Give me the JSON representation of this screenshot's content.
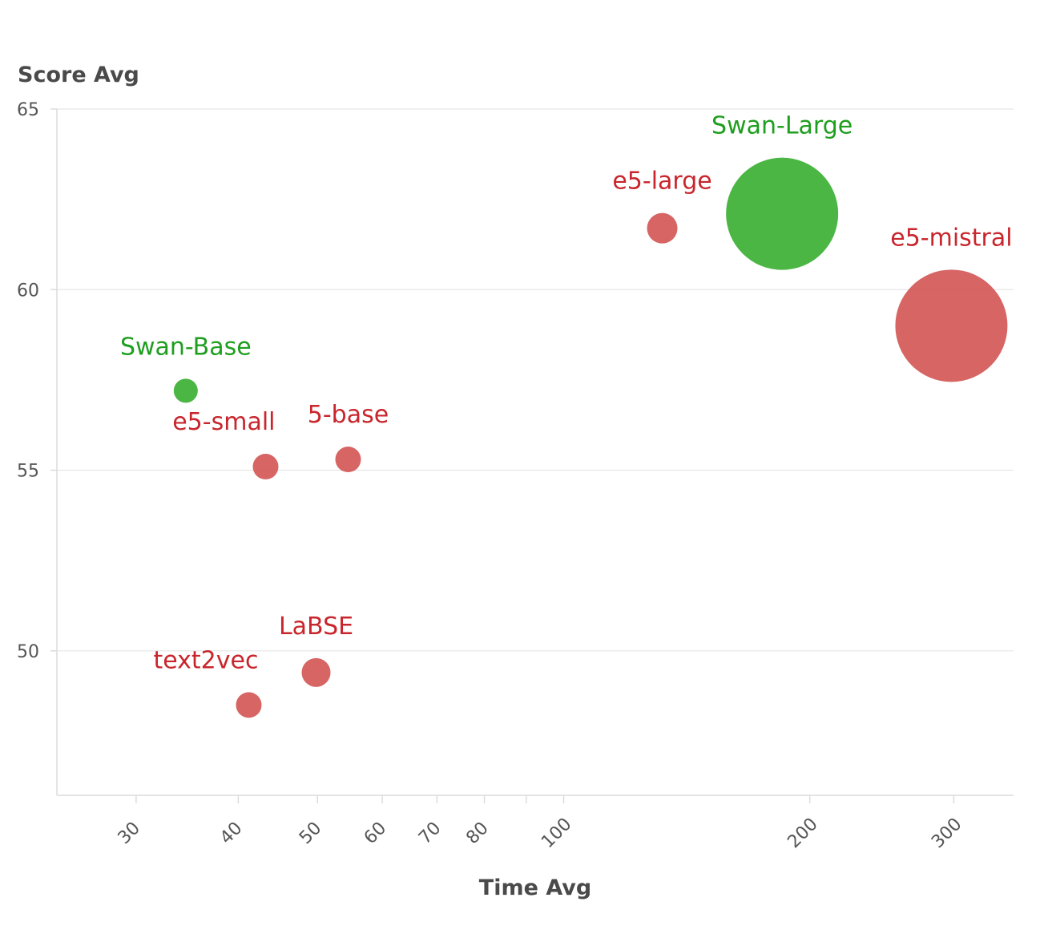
{
  "chart_data": {
    "type": "scatter",
    "title": "",
    "xlabel": "Time Avg",
    "ylabel": "Score Avg",
    "x_scale": "log",
    "xlim": [
      24,
      355
    ],
    "ylim": [
      46,
      65
    ],
    "x_ticks": [
      30,
      40,
      50,
      60,
      70,
      80,
      100,
      200,
      300
    ],
    "x_minor_ticks": [
      90
    ],
    "y_ticks": [
      50,
      55,
      60,
      65
    ],
    "grid": "y",
    "legend": "none",
    "colors": {
      "highlight": "#3cb034",
      "baseline": "#d0504f",
      "highlight_text": "#1e9e1e",
      "baseline_text": "#c8262c"
    },
    "points": [
      {
        "name": "Swan-Large",
        "x": 185,
        "y": 62.1,
        "size": 70,
        "group": "highlight",
        "label_pos": "above"
      },
      {
        "name": "e5-large",
        "x": 132,
        "y": 61.7,
        "size": 19,
        "group": "baseline",
        "label_pos": "above"
      },
      {
        "name": "e5-mistral",
        "x": 298,
        "y": 59.0,
        "size": 70,
        "group": "baseline",
        "label_pos": "above"
      },
      {
        "name": "Swan-Base",
        "x": 34.5,
        "y": 57.2,
        "size": 15,
        "group": "highlight",
        "label_pos": "above"
      },
      {
        "name": "e5-small",
        "x": 43.2,
        "y": 55.1,
        "size": 16,
        "group": "baseline",
        "label_pos": "left-above"
      },
      {
        "name": "5-base",
        "x": 54.5,
        "y": 55.3,
        "size": 16,
        "group": "baseline",
        "label_pos": "above"
      },
      {
        "name": "LaBSE",
        "x": 49.8,
        "y": 49.4,
        "size": 18,
        "group": "baseline",
        "label_pos": "above"
      },
      {
        "name": "text2vec",
        "x": 41.2,
        "y": 48.5,
        "size": 16,
        "group": "baseline",
        "label_pos": "left-above"
      }
    ]
  }
}
